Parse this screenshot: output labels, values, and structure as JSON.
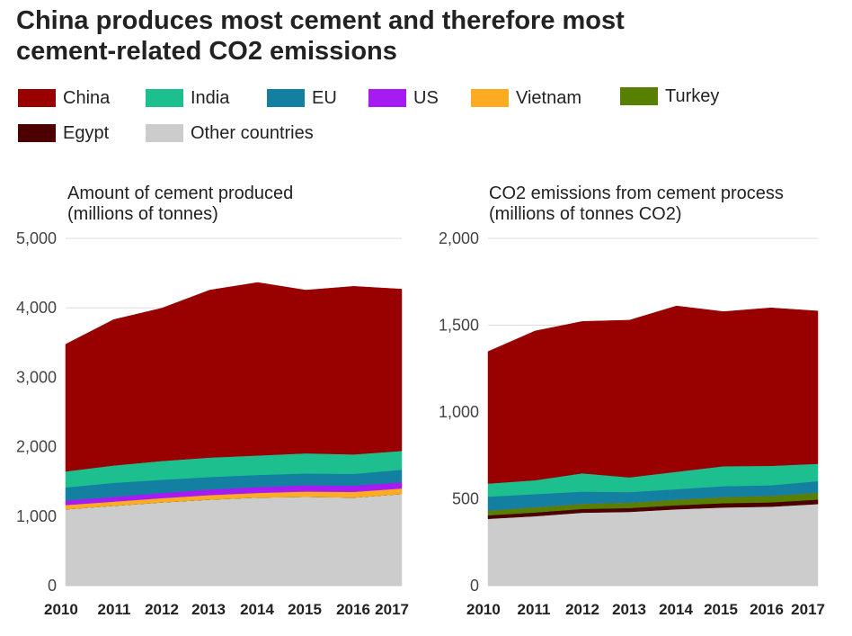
{
  "title": {
    "line1": "China produces most cement and therefore most",
    "line2": "cement-related CO2 emissions"
  },
  "legend": [
    {
      "label": "China",
      "color": "#990000"
    },
    {
      "label": "India",
      "color": "#1dbf8f"
    },
    {
      "label": "EU",
      "color": "#1380a1"
    },
    {
      "label": "US",
      "color": "#a61bf2"
    },
    {
      "label": "Vietnam",
      "color": "#fcab22"
    },
    {
      "label": "Turkey",
      "color": "#588000"
    },
    {
      "label": "Egypt",
      "color": "#4d0000"
    },
    {
      "label": "Other countries",
      "color": "#cccccc"
    }
  ],
  "chart_data": [
    {
      "type": "area",
      "stacked": true,
      "title_line1": "Amount of cement produced",
      "title_line2": "(millions of tonnes)",
      "x": [
        "2010",
        "2011",
        "2012",
        "2013",
        "2014",
        "2015",
        "2016",
        "2017"
      ],
      "ylim": [
        0,
        5000
      ],
      "yticks": [
        "0",
        "1,000",
        "2,000",
        "3,000",
        "4,000",
        "5,000"
      ],
      "grid": "horizontal",
      "series": [
        {
          "name": "Other countries",
          "color": "#cccccc",
          "values": [
            1100,
            1150,
            1200,
            1240,
            1270,
            1280,
            1270,
            1320
          ]
        },
        {
          "name": "Egypt",
          "color": "#4d0000",
          "values": [
            0,
            0,
            0,
            0,
            0,
            0,
            0,
            0
          ]
        },
        {
          "name": "Turkey",
          "color": "#588000",
          "values": [
            0,
            0,
            0,
            0,
            0,
            0,
            0,
            0
          ]
        },
        {
          "name": "Vietnam",
          "color": "#fcab22",
          "values": [
            60,
            60,
            60,
            65,
            65,
            75,
            80,
            80
          ]
        },
        {
          "name": "US",
          "color": "#a61bf2",
          "values": [
            65,
            70,
            75,
            80,
            85,
            90,
            90,
            90
          ]
        },
        {
          "name": "EU",
          "color": "#1380a1",
          "values": [
            190,
            200,
            190,
            180,
            175,
            170,
            170,
            180
          ]
        },
        {
          "name": "India",
          "color": "#1dbf8f",
          "values": [
            230,
            250,
            270,
            280,
            280,
            290,
            280,
            270
          ]
        },
        {
          "name": "China",
          "color": "#990000",
          "values": [
            1830,
            2100,
            2200,
            2410,
            2490,
            2350,
            2420,
            2330
          ]
        }
      ]
    },
    {
      "type": "area",
      "stacked": true,
      "title_line1": "CO2 emissions from cement process",
      "title_line2": "(millions of tonnes CO2)",
      "x": [
        "2010",
        "2011",
        "2012",
        "2013",
        "2014",
        "2015",
        "2016",
        "2017"
      ],
      "ylim": [
        0,
        2000
      ],
      "yticks": [
        "0",
        "500",
        "1,000",
        "1,500",
        "2,000"
      ],
      "grid": "horizontal",
      "series": [
        {
          "name": "Other countries",
          "color": "#cccccc",
          "values": [
            385,
            400,
            420,
            425,
            440,
            450,
            455,
            470
          ]
        },
        {
          "name": "Egypt",
          "color": "#4d0000",
          "values": [
            20,
            22,
            22,
            22,
            23,
            25,
            25,
            26
          ]
        },
        {
          "name": "Turkey",
          "color": "#588000",
          "values": [
            28,
            30,
            30,
            32,
            33,
            36,
            38,
            40
          ]
        },
        {
          "name": "Vietnam",
          "color": "#fcab22",
          "values": [
            0,
            0,
            0,
            0,
            0,
            0,
            0,
            0
          ]
        },
        {
          "name": "US",
          "color": "#a61bf2",
          "values": [
            0,
            0,
            0,
            0,
            0,
            0,
            0,
            0
          ]
        },
        {
          "name": "EU",
          "color": "#1380a1",
          "values": [
            80,
            75,
            70,
            60,
            60,
            62,
            60,
            66
          ]
        },
        {
          "name": "India",
          "color": "#1dbf8f",
          "values": [
            75,
            80,
            105,
            85,
            100,
            115,
            112,
            100
          ]
        },
        {
          "name": "China",
          "color": "#990000",
          "values": [
            760,
            860,
            875,
            905,
            955,
            890,
            910,
            880
          ]
        }
      ]
    }
  ]
}
